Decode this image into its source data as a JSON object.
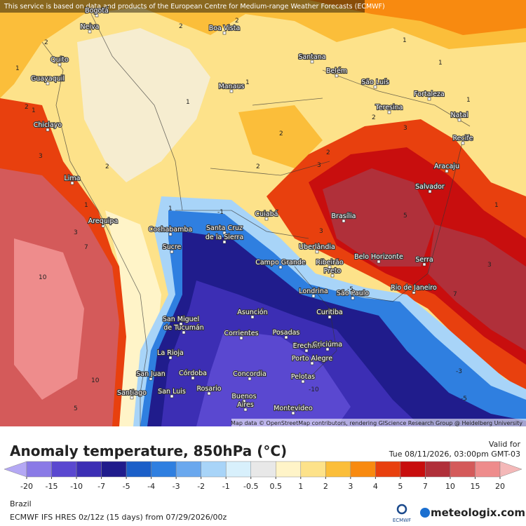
{
  "notice": "This service is based on data and products of the European Centre for Medium-range Weather Forecasts (ECMWF)",
  "attribution": "Map data © OpenStreetMap contributors, rendering GIScience Research Group @ Heidelberg University",
  "cities": [
    "Bogotá",
    "Neiva",
    "Quito",
    "Guayaquil",
    "Chiclayo",
    "Lima",
    "Arequipa",
    "Cochabamba",
    "Sucre",
    "Santa Cruz",
    "de la Sierra",
    "Boa Vista",
    "Manaus",
    "Santana",
    "Belém",
    "São Luís",
    "Fortaleza",
    "Teresina",
    "Natal",
    "Recife",
    "Aracaju",
    "Salvador",
    "Brasília",
    "Cuiabá",
    "Uberlândia",
    "Campo Grande",
    "Ribeirão",
    "Preto",
    "Belo Horizonte",
    "Serra",
    "Rio de Janeiro",
    "São Paulo",
    "Londrina",
    "Curitiba",
    "Asunción",
    "Corrientes",
    "Posadas",
    "Erechim",
    "Criciúma",
    "Porto Alegre",
    "Concordia",
    "Córdoba",
    "Rosario",
    "Pelotas",
    "Buenos",
    "Aires",
    "Montevideo",
    "Santiago",
    "San Juan",
    "San Luis",
    "La Rioja",
    "San Miguel",
    "de Tucumán"
  ],
  "contours": [
    2,
    1,
    2,
    1,
    2,
    1,
    3,
    2,
    1,
    2,
    1,
    1,
    2,
    1,
    2,
    3,
    3,
    2,
    3,
    1,
    3,
    1,
    7,
    10,
    10,
    5,
    -5,
    -3,
    -5,
    5,
    7,
    3,
    -1,
    -10,
    2,
    1
  ],
  "footer": {
    "title": "Anomaly temperature, 850hPa (°C)",
    "valid_label": "Valid for",
    "valid_time": "Tue 08/11/2026, 03:00pm GMT-03",
    "region": "Brazil",
    "model": "ECMWF IFS HRES 0z/12z (15 days) from 07/29/2026/00z",
    "ecmwf": "ECMWF",
    "brand": "meteologix.com"
  },
  "legend": {
    "ticks": [
      -20,
      -15,
      -10,
      -7,
      -5,
      -4,
      -3,
      -2,
      -1,
      -0.5,
      0.5,
      1,
      2,
      3,
      4,
      5,
      7,
      10,
      15,
      20
    ],
    "colors": [
      "#b4a8f4",
      "#8a7ae6",
      "#5a48d0",
      "#3c2eb4",
      "#201c8c",
      "#1b5fc8",
      "#2f7fe0",
      "#6aa8ee",
      "#a8d4f8",
      "#d8f0fc",
      "#e8e8e8",
      "#fff4c8",
      "#fde28a",
      "#fbbe3a",
      "#f88a10",
      "#e8400e",
      "#c80e0e",
      "#b0303a",
      "#d45a5a",
      "#ee8c8c",
      "#f4b8b8"
    ]
  }
}
